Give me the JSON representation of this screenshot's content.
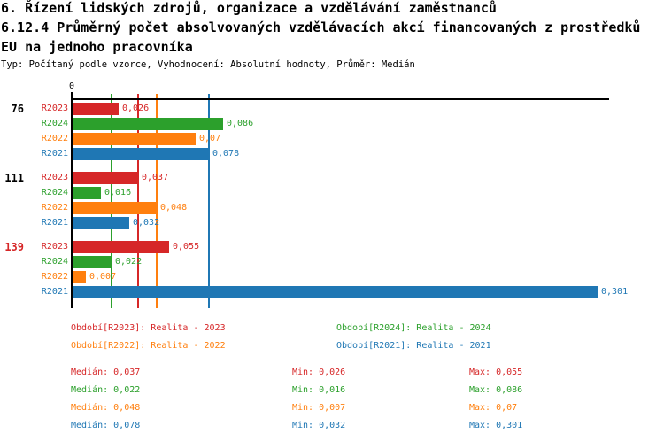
{
  "title": {
    "line1": "6. Řízení lidských zdrojů, organizace a vzdělávání zaměstnanců",
    "line2": "6.12.4 Průměrný počet absolvovaných vzdělávacích akcí financovaných z prostředků",
    "line3": "EU na jednoho pracovníka",
    "meta": "Typ: Počítaný podle vzorce, Vyhodnocení: Absolutní hodnoty, Průměr: Medián"
  },
  "chart_data": {
    "type": "bar",
    "orientation": "horizontal",
    "axis": {
      "zero_label": "0",
      "xlim": [
        0,
        0.305
      ],
      "grid": false
    },
    "series": [
      {
        "id": "R2023",
        "color": "#d62728",
        "median": 0.037,
        "median_display": "0,037",
        "min_display": "0,026",
        "max_display": "0,055"
      },
      {
        "id": "R2024",
        "color": "#2ca02c",
        "median": 0.022,
        "median_display": "0,022",
        "min_display": "0,016",
        "max_display": "0,086"
      },
      {
        "id": "R2022",
        "color": "#ff7f0e",
        "median": 0.048,
        "median_display": "0,048",
        "min_display": "0,007",
        "max_display": "0,07"
      },
      {
        "id": "R2021",
        "color": "#1f77b4",
        "median": 0.078,
        "median_display": "0,078",
        "min_display": "0,032",
        "max_display": "0,301"
      }
    ],
    "groups": [
      {
        "label": "76",
        "label_color": "#000000",
        "bars": [
          {
            "series": "R2023",
            "value": 0.026,
            "display": "0,026"
          },
          {
            "series": "R2024",
            "value": 0.086,
            "display": "0,086"
          },
          {
            "series": "R2022",
            "value": 0.07,
            "display": "0,07"
          },
          {
            "series": "R2021",
            "value": 0.078,
            "display": "0,078"
          }
        ]
      },
      {
        "label": "111",
        "label_color": "#000000",
        "bars": [
          {
            "series": "R2023",
            "value": 0.037,
            "display": "0,037"
          },
          {
            "series": "R2024",
            "value": 0.016,
            "display": "0,016"
          },
          {
            "series": "R2022",
            "value": 0.048,
            "display": "0,048"
          },
          {
            "series": "R2021",
            "value": 0.032,
            "display": "0,032"
          }
        ]
      },
      {
        "label": "139",
        "label_color": "#d62728",
        "bars": [
          {
            "series": "R2023",
            "value": 0.055,
            "display": "0,055"
          },
          {
            "series": "R2024",
            "value": 0.022,
            "display": "0,022"
          },
          {
            "series": "R2022",
            "value": 0.007,
            "display": "0,007"
          },
          {
            "series": "R2021",
            "value": 0.301,
            "display": "0,301"
          }
        ]
      }
    ]
  },
  "legend": {
    "items": [
      {
        "series": "R2023",
        "label": "Období[R2023]: Realita - 2023",
        "color": "#d62728"
      },
      {
        "series": "R2024",
        "label": "Období[R2024]: Realita - 2024",
        "color": "#2ca02c"
      },
      {
        "series": "R2022",
        "label": "Období[R2022]: Realita - 2022",
        "color": "#ff7f0e"
      },
      {
        "series": "R2021",
        "label": "Období[R2021]: Realita - 2021",
        "color": "#1f77b4"
      }
    ]
  },
  "stats": {
    "labels": {
      "median": "Medián",
      "min": "Min",
      "max": "Max"
    }
  }
}
